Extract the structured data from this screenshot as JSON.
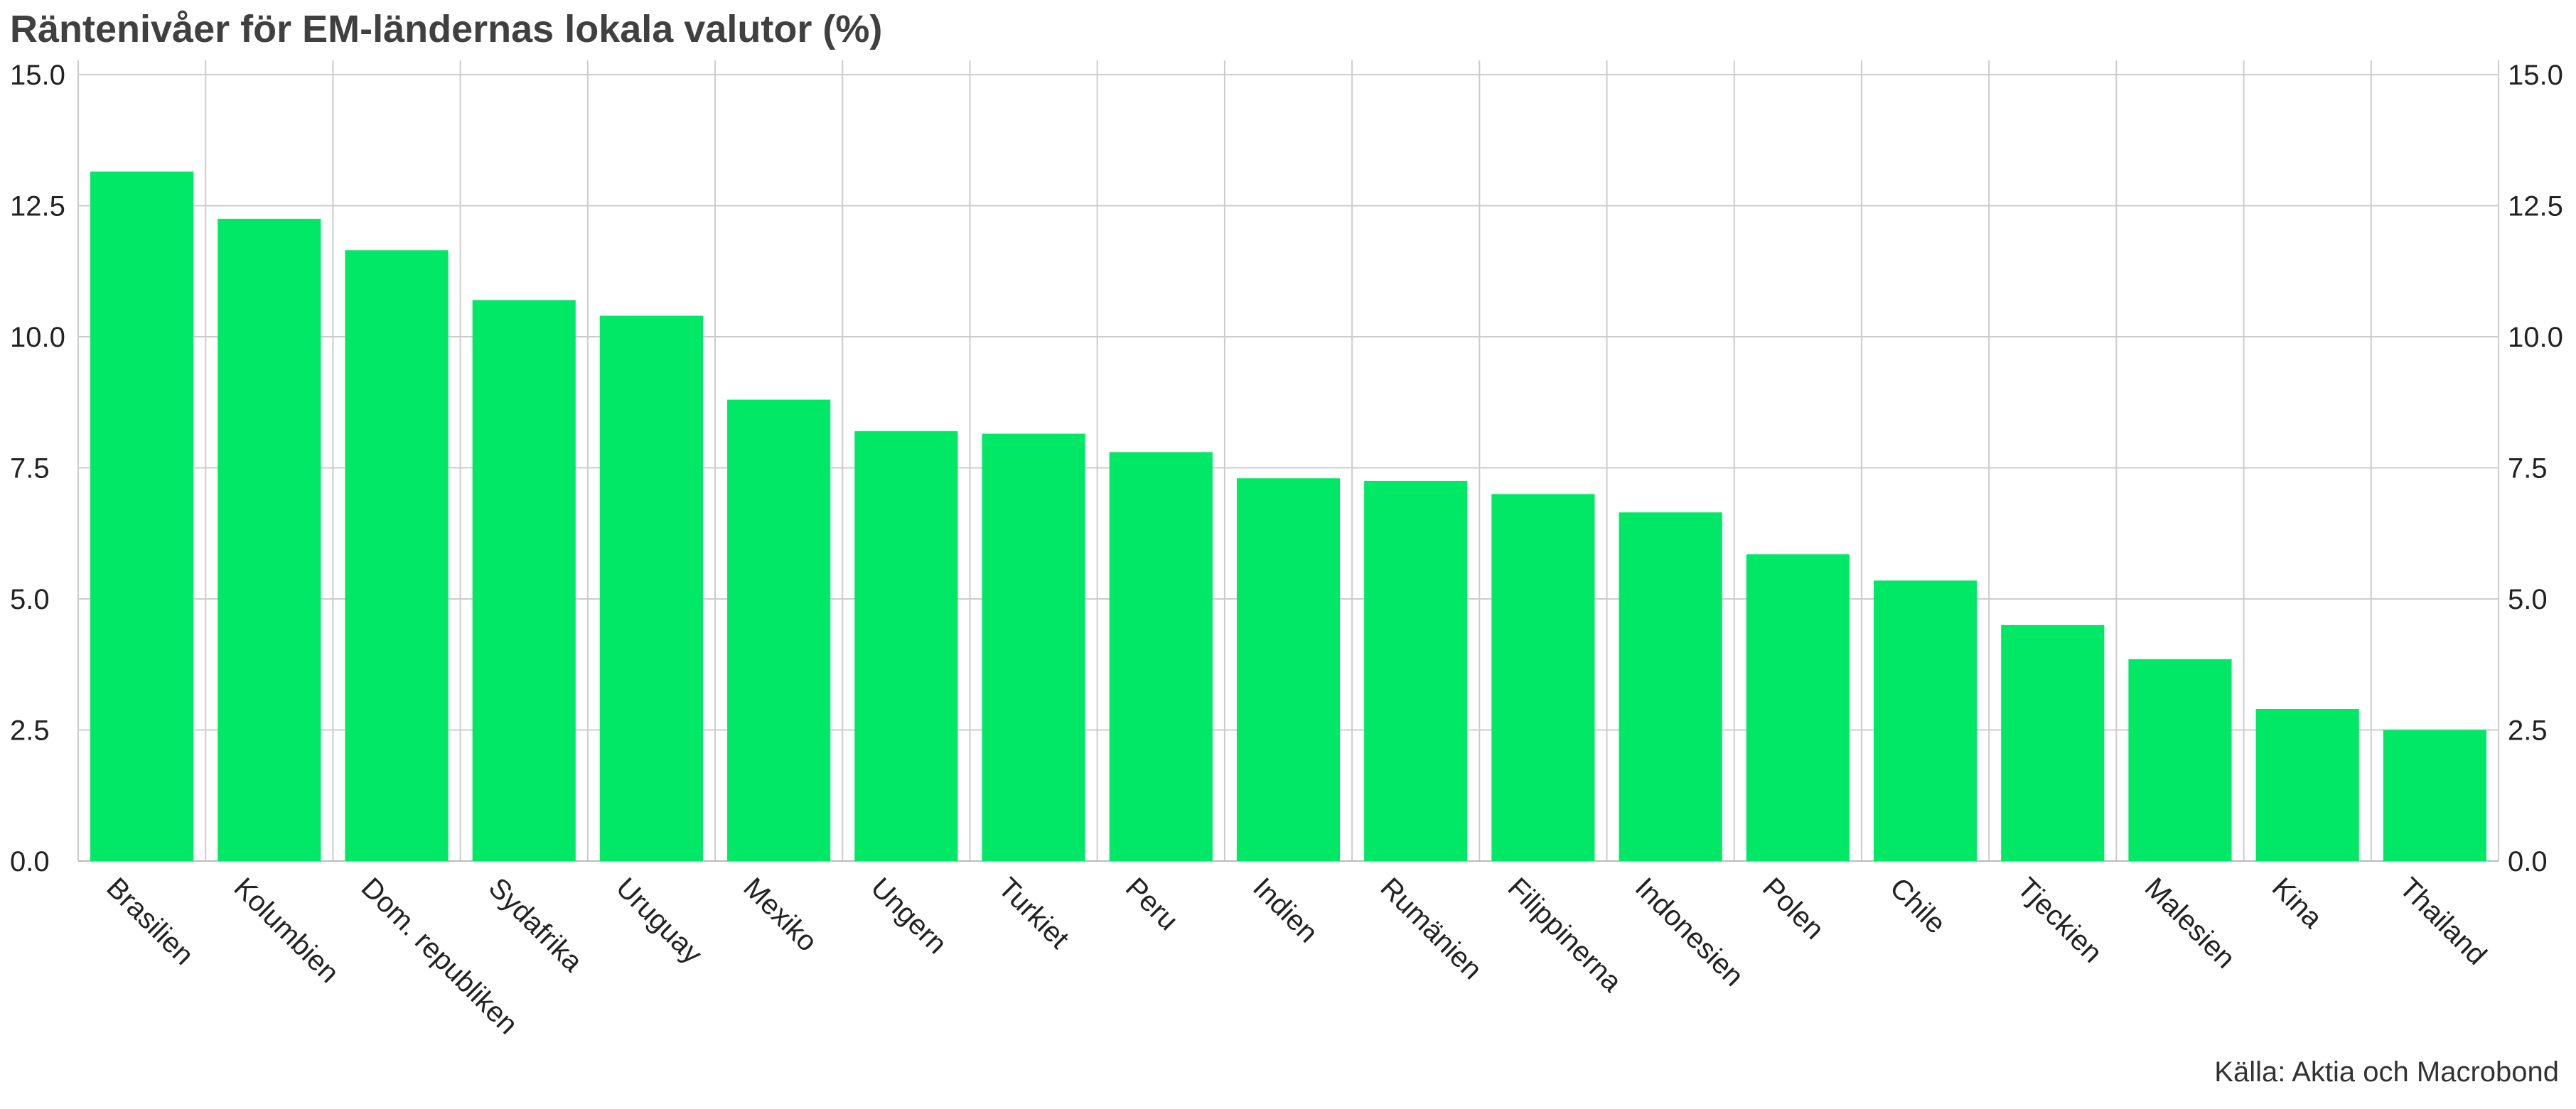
{
  "title": "Räntenivåer för EM-ländernas lokala valutor (%)",
  "source": "Källa: Aktia och Macrobond",
  "chart_data": {
    "type": "bar",
    "title": "Räntenivåer för EM-ländernas lokala valutor (%)",
    "categories": [
      "Brasilien",
      "Kolumbien",
      "Dom. republiken",
      "Sydafrika",
      "Uruguay",
      "Mexiko",
      "Ungern",
      "Turkiet",
      "Peru",
      "Indien",
      "Rumänien",
      "Filippinerna",
      "Indonesien",
      "Polen",
      "Chile",
      "Tjeckien",
      "Malesien",
      "Kina",
      "Thailand"
    ],
    "values": [
      13.15,
      12.25,
      11.65,
      10.7,
      10.4,
      8.8,
      8.2,
      8.15,
      7.8,
      7.3,
      7.25,
      7.0,
      6.65,
      5.85,
      5.35,
      4.5,
      3.85,
      2.9,
      2.5
    ],
    "ylim": [
      0,
      15
    ],
    "yticks": [
      "0.0",
      "2.5",
      "5.0",
      "7.5",
      "10.0",
      "12.5",
      "15.0"
    ],
    "ytick_values": [
      0,
      2.5,
      5,
      7.5,
      10,
      12.5,
      15
    ],
    "axes": "left and right",
    "grid": true,
    "bar_color": "#00e865",
    "grid_color": "#cccccc",
    "legend": "none"
  }
}
